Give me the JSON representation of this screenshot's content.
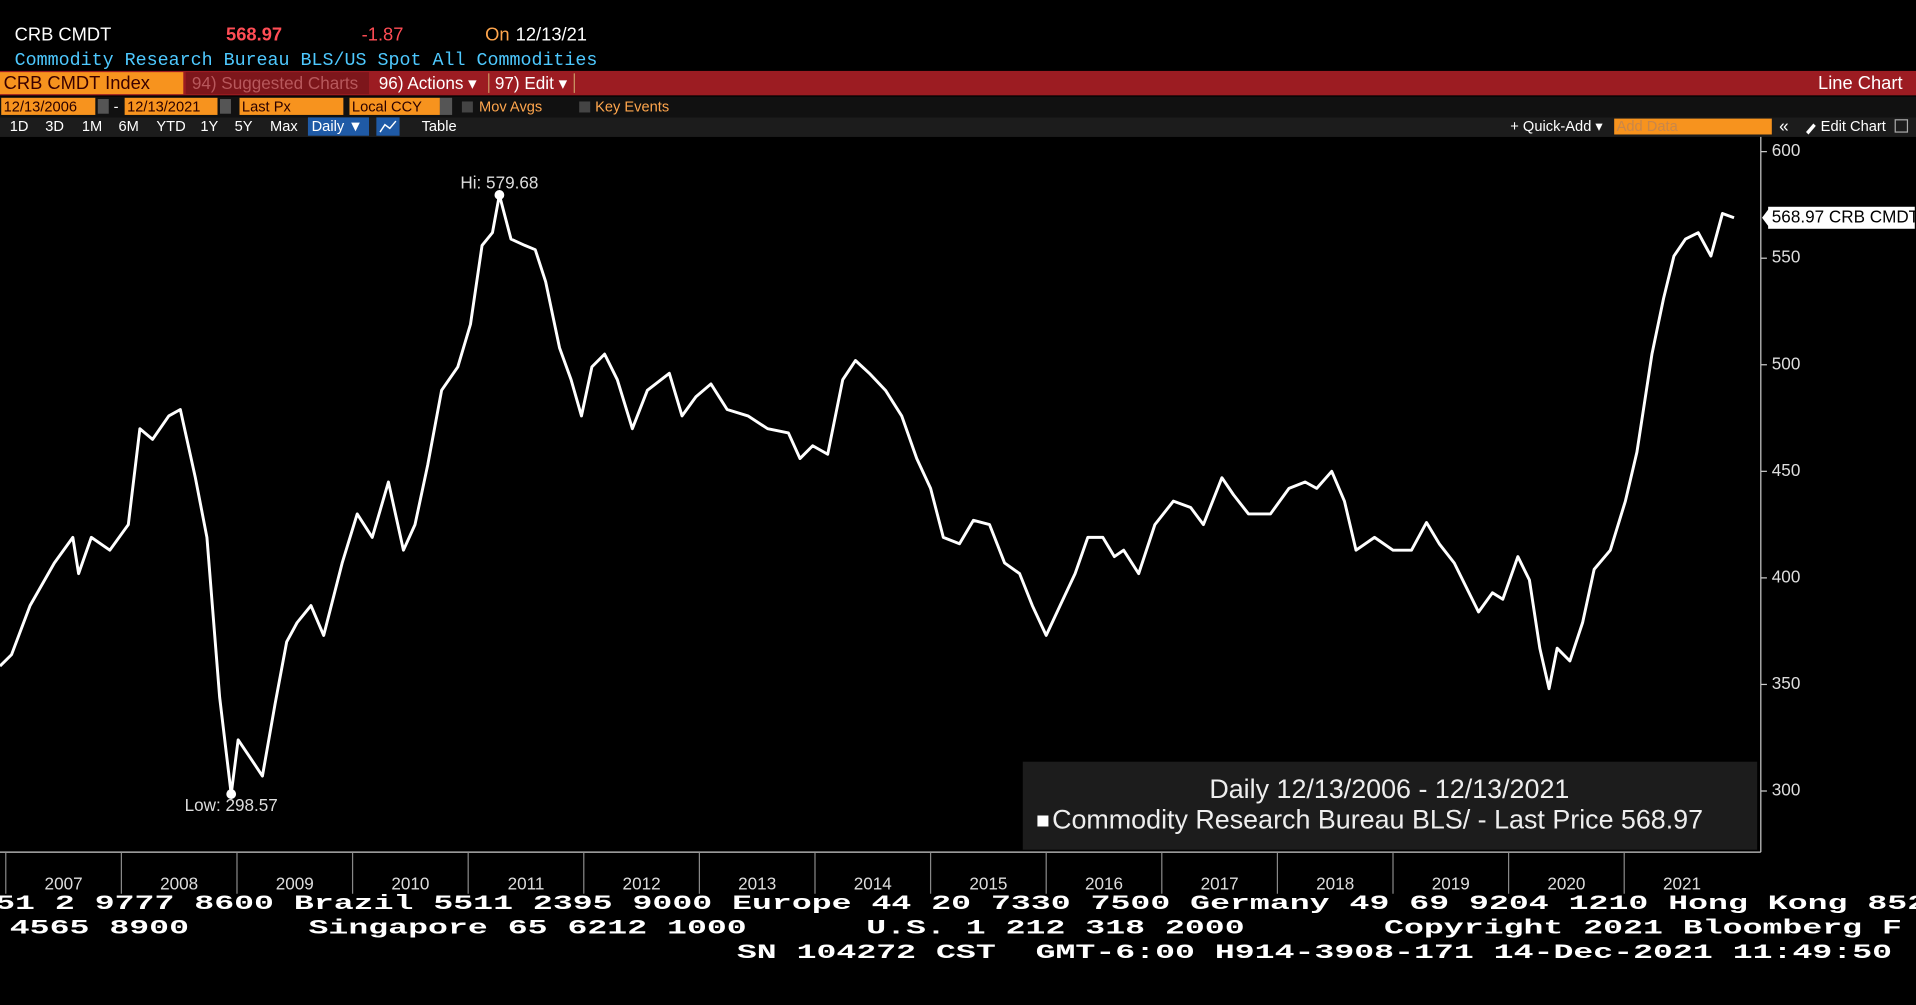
{
  "header": {
    "ticker": "CRB CMDT",
    "price": "568.97",
    "change": "-1.87",
    "on_label": "On",
    "date": "12/13/21",
    "subtitle": "Commodity Research Bureau BLS/US Spot All Commodities"
  },
  "toolbar": {
    "security": "CRB CMDT Index",
    "menu": [
      "94) Suggested Charts",
      "96) Actions ▾",
      "97) Edit ▾"
    ],
    "chart_kind": "Line Chart",
    "start_date": "12/13/2006",
    "date_sep": "-",
    "end_date": "12/13/2021",
    "field": "Last Px",
    "currency": "Local CCY",
    "options": [
      "Mov Avgs",
      "Key Events"
    ],
    "periods": [
      "1D",
      "3D",
      "1M",
      "6M",
      "YTD",
      "1Y",
      "5Y",
      "Max"
    ],
    "frequency": "Daily ▼",
    "table": "Table",
    "quick_add": "+ Quick-Add ▾",
    "add_data": "Add Data",
    "collapse": "«",
    "edit_chart": "Edit Chart"
  },
  "chart_data": {
    "type": "line",
    "legend_title": "Daily 12/13/2006 - 12/13/2021",
    "legend_last_price": "568.97",
    "last_price_tag": "568.97 CRB CMDT",
    "x": [
      2006.95,
      2007.05,
      2007.21,
      2007.42,
      2007.58,
      2007.63,
      2007.74,
      2007.9,
      2008.06,
      2008.16,
      2008.27,
      2008.41,
      2008.51,
      2008.64,
      2008.74,
      2008.85,
      2008.95,
      2009.01,
      2009.11,
      2009.22,
      2009.33,
      2009.43,
      2009.52,
      2009.64,
      2009.75,
      2009.91,
      2010.04,
      2010.17,
      2010.31,
      2010.44,
      2010.54,
      2010.65,
      2010.77,
      2010.91,
      2011.02,
      2011.12,
      2011.21,
      2011.27,
      2011.37,
      2011.49,
      2011.58,
      2011.67,
      2011.79,
      2011.89,
      2011.98,
      2012.07,
      2012.18,
      2012.29,
      2012.42,
      2012.55,
      2012.74,
      2012.85,
      2012.97,
      2013.1,
      2013.24,
      2013.42,
      2013.59,
      2013.77,
      2013.87,
      2013.98,
      2014.11,
      2014.24,
      2014.35,
      2014.47,
      2014.61,
      2014.75,
      2014.88,
      2015.0,
      2015.11,
      2015.25,
      2015.37,
      2015.51,
      2015.64,
      2015.77,
      2015.88,
      2016.0,
      2016.12,
      2016.25,
      2016.36,
      2016.49,
      2016.59,
      2016.67,
      2016.8,
      2016.94,
      2017.1,
      2017.25,
      2017.36,
      2017.52,
      2017.62,
      2017.75,
      2017.94,
      2018.1,
      2018.24,
      2018.34,
      2018.47,
      2018.58,
      2018.68,
      2018.84,
      2019.0,
      2019.16,
      2019.29,
      2019.4,
      2019.53,
      2019.63,
      2019.74,
      2019.86,
      2019.95,
      2020.08,
      2020.18,
      2020.27,
      2020.35,
      2020.42,
      2020.53,
      2020.64,
      2020.74,
      2020.88,
      2021.01,
      2021.11,
      2021.24,
      2021.34,
      2021.43,
      2021.53,
      2021.64,
      2021.75,
      2021.85,
      2021.95
    ],
    "series": [
      {
        "name": "Commodity Research Bureau BLS/ - Last Price",
        "color": "#ffffff",
        "values": [
          358.6,
          364,
          387,
          407,
          419,
          402,
          419,
          413,
          425,
          470,
          465,
          476,
          479,
          447,
          419,
          344,
          298.57,
          324,
          316,
          307,
          341,
          370,
          379,
          387,
          373,
          407,
          430,
          419,
          445,
          413,
          425,
          453,
          488,
          499,
          519,
          556,
          562,
          579.68,
          559,
          556,
          554,
          539,
          508,
          493,
          476,
          499,
          505,
          493,
          470,
          488,
          496,
          476,
          485,
          491,
          479,
          476,
          470,
          468,
          456,
          462,
          458,
          493,
          502,
          496,
          488,
          476,
          456,
          442,
          419,
          416,
          427,
          425,
          407,
          402,
          387,
          373,
          387,
          402,
          419,
          419,
          410,
          413,
          402,
          425,
          436,
          433,
          425,
          447,
          439,
          430,
          430,
          442,
          445,
          442,
          450,
          436,
          413,
          419,
          413,
          413,
          426,
          416,
          407,
          396,
          384,
          393,
          390,
          410,
          399,
          367,
          348,
          367,
          361,
          379,
          404,
          413,
          436,
          459,
          505,
          531,
          551,
          559,
          562,
          551,
          571,
          568.97
        ]
      }
    ],
    "annotations": [
      {
        "text": "Hi: 579.68",
        "x": 2011.27,
        "y": 579.68,
        "position": "above"
      },
      {
        "text": "Low: 298.57",
        "x": 2008.95,
        "y": 298.57,
        "position": "below"
      }
    ],
    "xlim": [
      2006.95,
      2022.15
    ],
    "xticks": [
      2007,
      2008,
      2009,
      2010,
      2011,
      2012,
      2013,
      2014,
      2015,
      2016,
      2017,
      2018,
      2019,
      2020,
      2021
    ],
    "ylim": [
      271.3,
      606.9
    ],
    "yticks": [
      300,
      350,
      400,
      450,
      500,
      550,
      600
    ],
    "grid": false
  },
  "footer": {
    "lines": [
      "51 2 9777 8600 Brazil 5511 2395 9000 Europe 44 20 7330 7500 Germany 49 69 9204 1210 Hong Kong 852",
      "4565 8900      Singapore 65 6212 1000      U.S. 1 212 318 2000       Copyright 2021 Bloomberg F",
      "SN 104272 CST  GMT-6:00 H914-3908-171 14-Dec-2021 11:49:50"
    ]
  }
}
